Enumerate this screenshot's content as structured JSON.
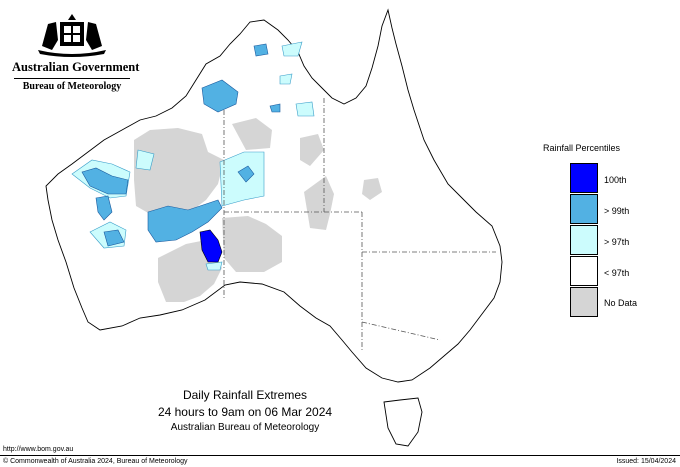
{
  "header": {
    "government": "Australian Government",
    "bureau": "Bureau of Meteorology"
  },
  "legend": {
    "title": "Rainfall Percentiles",
    "items": [
      {
        "label": "100th",
        "color": "#0000ff"
      },
      {
        "label": "> 99th",
        "color": "#52b1e3"
      },
      {
        "label": "> 97th",
        "color": "#ccfcfd"
      },
      {
        "label": "< 97th",
        "color": "#ffffff"
      },
      {
        "label": "No Data",
        "color": "#d5d5d5"
      }
    ]
  },
  "map_title": {
    "line1": "Daily Rainfall Extremes",
    "line2": "24 hours to 9am on 06 Mar 2024",
    "line3": "Australian Bureau of Meteorology"
  },
  "footer": {
    "url": "http://www.bom.gov.au",
    "copyright": "© Commonwealth of Australia 2024, Bureau of Meteorology",
    "issued": "Issued: 15/04/2024"
  },
  "colors": {
    "pct100": "#0000ff",
    "pct99": "#52b1e3",
    "pct97": "#ccfcfd",
    "nodata": "#d5d5d5",
    "land": "#ffffff"
  }
}
